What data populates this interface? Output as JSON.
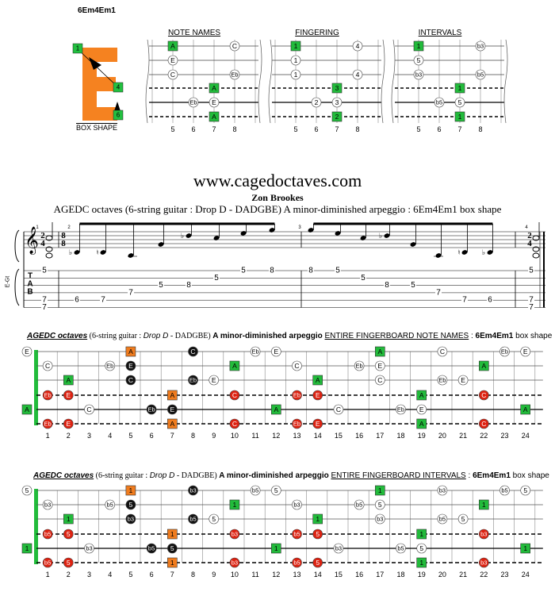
{
  "box": {
    "name": "6Em4Em1",
    "caption": "BOX SHAPE",
    "fingers": [
      "1",
      "4",
      "6"
    ],
    "colors": {
      "letter": "#f58220",
      "box": "#22c040"
    }
  },
  "mini": {
    "headers": [
      "NOTE NAMES",
      "FINGERING",
      "INTERVALS"
    ],
    "fret_numbers": [
      "5",
      "6",
      "7",
      "8"
    ],
    "note_names": {
      "s1": [
        "A",
        "C"
      ],
      "s2": [
        "E"
      ],
      "s3": [
        "C",
        "Eb"
      ],
      "s4": [
        "A"
      ],
      "s5": [
        "Eb",
        "E"
      ],
      "s6": [
        "A"
      ]
    },
    "fingering": {
      "s1": [
        "1",
        "4"
      ],
      "s2": [
        "1"
      ],
      "s3": [
        "1",
        "4"
      ],
      "s4": [
        "3"
      ],
      "s5": [
        "2",
        "3"
      ],
      "s6": [
        "2"
      ]
    },
    "intervals": {
      "s1": [
        "1",
        "b3"
      ],
      "s2": [
        "5"
      ],
      "s3": [
        "b3",
        "b5"
      ],
      "s4": [
        "1"
      ],
      "s5": [
        "b5",
        "5"
      ],
      "s6": [
        "1"
      ]
    }
  },
  "site": "www.cagedoctaves.com",
  "author": "Zon Brookes",
  "subtitle": "AGEDC octaves (6-string guitar : Drop D - DADGBE) A minor-diminished arpeggio : 6Em4Em1 box shape",
  "score": {
    "tuning_label": "E-Gt",
    "clef_label": "TAB",
    "time_sig_1": [
      "2",
      "4"
    ],
    "time_sig_2": [
      "8",
      "8"
    ],
    "measure_numbers": [
      "1",
      "2",
      "3",
      "4"
    ],
    "notes_m2": [
      "Eb",
      "E",
      "A",
      "C",
      "Eb",
      "E",
      "A",
      "C"
    ],
    "notes_m3": [
      "C",
      "A",
      "E",
      "Eb",
      "C",
      "A",
      "E",
      "Eb"
    ],
    "tab_m1": [
      {
        "s": 1,
        "f": "5"
      },
      {
        "s": 5,
        "f": "7"
      },
      {
        "s": 6,
        "f": "7"
      }
    ],
    "tab_m2": [
      {
        "s": 5,
        "f": "6"
      },
      {
        "s": 5,
        "f": "7"
      },
      {
        "s": 4,
        "f": "7"
      },
      {
        "s": 3,
        "f": "5"
      },
      {
        "s": 3,
        "f": "8"
      },
      {
        "s": 2,
        "f": "5"
      },
      {
        "s": 1,
        "f": "5"
      },
      {
        "s": 1,
        "f": "8"
      }
    ],
    "tab_m3": [
      {
        "s": 1,
        "f": "8"
      },
      {
        "s": 1,
        "f": "5"
      },
      {
        "s": 2,
        "f": "5"
      },
      {
        "s": 3,
        "f": "8"
      },
      {
        "s": 3,
        "f": "5"
      },
      {
        "s": 4,
        "f": "7"
      },
      {
        "s": 5,
        "f": "7"
      },
      {
        "s": 5,
        "f": "6"
      }
    ],
    "tab_m4": [
      {
        "s": 1,
        "f": "5"
      },
      {
        "s": 5,
        "f": "7"
      },
      {
        "s": 6,
        "f": "7"
      }
    ]
  },
  "fb1": {
    "prefix": "AGEDC octaves",
    "mid1": " (6-string guitar : ",
    "drop": "Drop D",
    "mid2": " - DADGBE) ",
    "bold1": "A minor-diminished arpeggio ",
    "under": "ENTIRE FINGERBOARD NOTE NAMES",
    "mid3": " : ",
    "bold2": "6Em4Em1",
    "suffix": " box shape"
  },
  "fb2": {
    "prefix": "AGEDC octaves",
    "mid1": " (6-string guitar : ",
    "drop": "Drop D",
    "mid2": " - DADGBE) ",
    "bold1": "A minor-diminished arpeggio ",
    "under": "ENTIRE FINGERBOARD INTERVALS",
    "mid3": " : ",
    "bold2": "6Em4Em1",
    "suffix": " box shape"
  },
  "fret_numbers": [
    "1",
    "2",
    "3",
    "4",
    "5",
    "6",
    "7",
    "8",
    "9",
    "10",
    "11",
    "12",
    "13",
    "14",
    "15",
    "16",
    "17",
    "18",
    "19",
    "20",
    "21",
    "22",
    "23",
    "24"
  ],
  "fb_names": {
    "s1": [
      [
        "0",
        "E",
        "w"
      ],
      [
        "5",
        "A",
        "o"
      ],
      [
        "8",
        "C",
        "k"
      ],
      [
        "11",
        "Eb",
        "w"
      ],
      [
        "12",
        "E",
        "w"
      ],
      [
        "17",
        "A",
        "g"
      ],
      [
        "20",
        "C",
        "w"
      ],
      [
        "23",
        "Eb",
        "w"
      ],
      [
        "24",
        "E",
        "w"
      ]
    ],
    "s2": [
      [
        "1",
        "C",
        "w"
      ],
      [
        "4",
        "Eb",
        "w"
      ],
      [
        "5",
        "E",
        "k"
      ],
      [
        "10",
        "A",
        "g"
      ],
      [
        "13",
        "C",
        "w"
      ],
      [
        "16",
        "Eb",
        "w"
      ],
      [
        "17",
        "E",
        "w"
      ],
      [
        "22",
        "A",
        "g"
      ]
    ],
    "s3": [
      [
        "2",
        "A",
        "g"
      ],
      [
        "5",
        "C",
        "k"
      ],
      [
        "8",
        "Eb",
        "k"
      ],
      [
        "9",
        "E",
        "w"
      ],
      [
        "14",
        "A",
        "g"
      ],
      [
        "17",
        "C",
        "w"
      ],
      [
        "20",
        "Eb",
        "w"
      ],
      [
        "21",
        "E",
        "w"
      ]
    ],
    "s4": [
      [
        "1",
        "Eb",
        "r"
      ],
      [
        "2",
        "E",
        "r"
      ],
      [
        "7",
        "A",
        "o"
      ],
      [
        "10",
        "C",
        "r"
      ],
      [
        "13",
        "Eb",
        "r"
      ],
      [
        "14",
        "E",
        "r"
      ],
      [
        "19",
        "A",
        "g"
      ],
      [
        "22",
        "C",
        "r"
      ]
    ],
    "s5": [
      [
        "0",
        "A",
        "g"
      ],
      [
        "3",
        "C",
        "w"
      ],
      [
        "6",
        "Eb",
        "k"
      ],
      [
        "7",
        "E",
        "k"
      ],
      [
        "12",
        "A",
        "g"
      ],
      [
        "15",
        "C",
        "w"
      ],
      [
        "18",
        "Eb",
        "w"
      ],
      [
        "19",
        "E",
        "w"
      ],
      [
        "24",
        "A",
        "g"
      ]
    ],
    "s6": [
      [
        "1",
        "Eb",
        "r"
      ],
      [
        "2",
        "E",
        "r"
      ],
      [
        "7",
        "A",
        "o"
      ],
      [
        "10",
        "C",
        "r"
      ],
      [
        "13",
        "Eb",
        "r"
      ],
      [
        "14",
        "E",
        "r"
      ],
      [
        "19",
        "A",
        "g"
      ],
      [
        "22",
        "C",
        "r"
      ]
    ]
  },
  "fb_intervals": {
    "s1": [
      [
        "0",
        "5",
        "w"
      ],
      [
        "5",
        "1",
        "o"
      ],
      [
        "8",
        "b3",
        "k"
      ],
      [
        "11",
        "b5",
        "w"
      ],
      [
        "12",
        "5",
        "w"
      ],
      [
        "17",
        "1",
        "g"
      ],
      [
        "20",
        "b3",
        "w"
      ],
      [
        "23",
        "b5",
        "w"
      ],
      [
        "24",
        "5",
        "w"
      ]
    ],
    "s2": [
      [
        "1",
        "b3",
        "w"
      ],
      [
        "4",
        "b5",
        "w"
      ],
      [
        "5",
        "5",
        "k"
      ],
      [
        "10",
        "1",
        "g"
      ],
      [
        "13",
        "b3",
        "w"
      ],
      [
        "16",
        "b5",
        "w"
      ],
      [
        "17",
        "5",
        "w"
      ],
      [
        "22",
        "1",
        "g"
      ]
    ],
    "s3": [
      [
        "2",
        "1",
        "g"
      ],
      [
        "5",
        "b3",
        "k"
      ],
      [
        "8",
        "b5",
        "k"
      ],
      [
        "9",
        "5",
        "w"
      ],
      [
        "14",
        "1",
        "g"
      ],
      [
        "17",
        "b3",
        "w"
      ],
      [
        "20",
        "b5",
        "w"
      ],
      [
        "21",
        "5",
        "w"
      ]
    ],
    "s4": [
      [
        "1",
        "b5",
        "r"
      ],
      [
        "2",
        "5",
        "r"
      ],
      [
        "7",
        "1",
        "o"
      ],
      [
        "10",
        "b3",
        "r"
      ],
      [
        "13",
        "b5",
        "r"
      ],
      [
        "14",
        "5",
        "r"
      ],
      [
        "19",
        "1",
        "g"
      ],
      [
        "22",
        "b3",
        "r"
      ]
    ],
    "s5": [
      [
        "0",
        "1",
        "g"
      ],
      [
        "3",
        "b3",
        "w"
      ],
      [
        "6",
        "b5",
        "k"
      ],
      [
        "7",
        "5",
        "k"
      ],
      [
        "12",
        "1",
        "g"
      ],
      [
        "15",
        "b3",
        "w"
      ],
      [
        "18",
        "b5",
        "w"
      ],
      [
        "19",
        "5",
        "w"
      ],
      [
        "24",
        "1",
        "g"
      ]
    ],
    "s6": [
      [
        "1",
        "b5",
        "r"
      ],
      [
        "2",
        "5",
        "r"
      ],
      [
        "7",
        "1",
        "o"
      ],
      [
        "10",
        "b3",
        "r"
      ],
      [
        "13",
        "b5",
        "r"
      ],
      [
        "14",
        "5",
        "r"
      ],
      [
        "19",
        "1",
        "g"
      ],
      [
        "22",
        "b3",
        "r"
      ]
    ]
  },
  "colors": {
    "green": "#22bb3b",
    "orange": "#f07c1e",
    "red": "#dd2211",
    "black": "#111111",
    "white": "#ffffff"
  }
}
